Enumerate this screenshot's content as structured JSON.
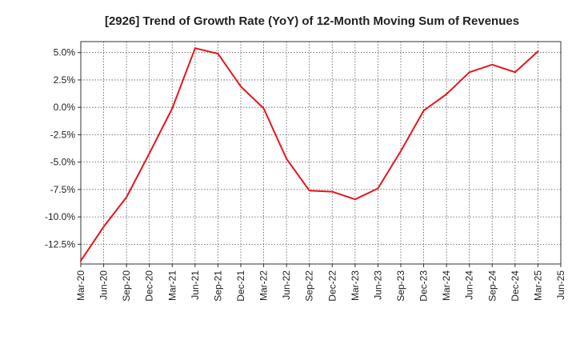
{
  "chart_data": {
    "type": "line",
    "title": "[2926]  Trend of Growth Rate (YoY) of 12-Month Moving Sum of Revenues",
    "xlabel": "",
    "ylabel": "",
    "x_ticks": [
      "Mar-20",
      "Jun-20",
      "Sep-20",
      "Dec-20",
      "Mar-21",
      "Jun-21",
      "Sep-21",
      "Dec-21",
      "Mar-22",
      "Jun-22",
      "Sep-22",
      "Dec-22",
      "Mar-23",
      "Jun-23",
      "Sep-23",
      "Dec-23",
      "Mar-24",
      "Jun-24",
      "Sep-24",
      "Dec-24",
      "Mar-25",
      "Jun-25"
    ],
    "y_ticks": [
      5.0,
      2.5,
      0.0,
      -2.5,
      -5.0,
      -7.5,
      -10.0,
      -12.5
    ],
    "y_tick_labels": [
      "5.0%",
      "2.5%",
      "0.0%",
      "-2.5%",
      "-5.0%",
      "-7.5%",
      "-10.0%",
      "-12.5%"
    ],
    "ylim": [
      -14.3,
      6.0
    ],
    "grid": true,
    "series": [
      {
        "color": "#e8141b",
        "x": [
          "Mar-20",
          "Jun-20",
          "Sep-20",
          "Dec-20",
          "Mar-21",
          "Jun-21",
          "Sep-21",
          "Dec-21",
          "Mar-22",
          "Jun-22",
          "Sep-22",
          "Dec-22",
          "Mar-23",
          "Jun-23",
          "Sep-23",
          "Dec-23",
          "Mar-24",
          "Jun-24",
          "Sep-24",
          "Dec-24",
          "Mar-25"
        ],
        "values": [
          -14.0,
          -10.9,
          -8.2,
          -4.2,
          -0.1,
          5.4,
          4.9,
          1.9,
          -0.1,
          -4.7,
          -7.6,
          -7.7,
          -8.4,
          -7.4,
          -4.0,
          -0.3,
          1.2,
          3.2,
          3.9,
          3.2,
          5.1
        ]
      }
    ]
  }
}
